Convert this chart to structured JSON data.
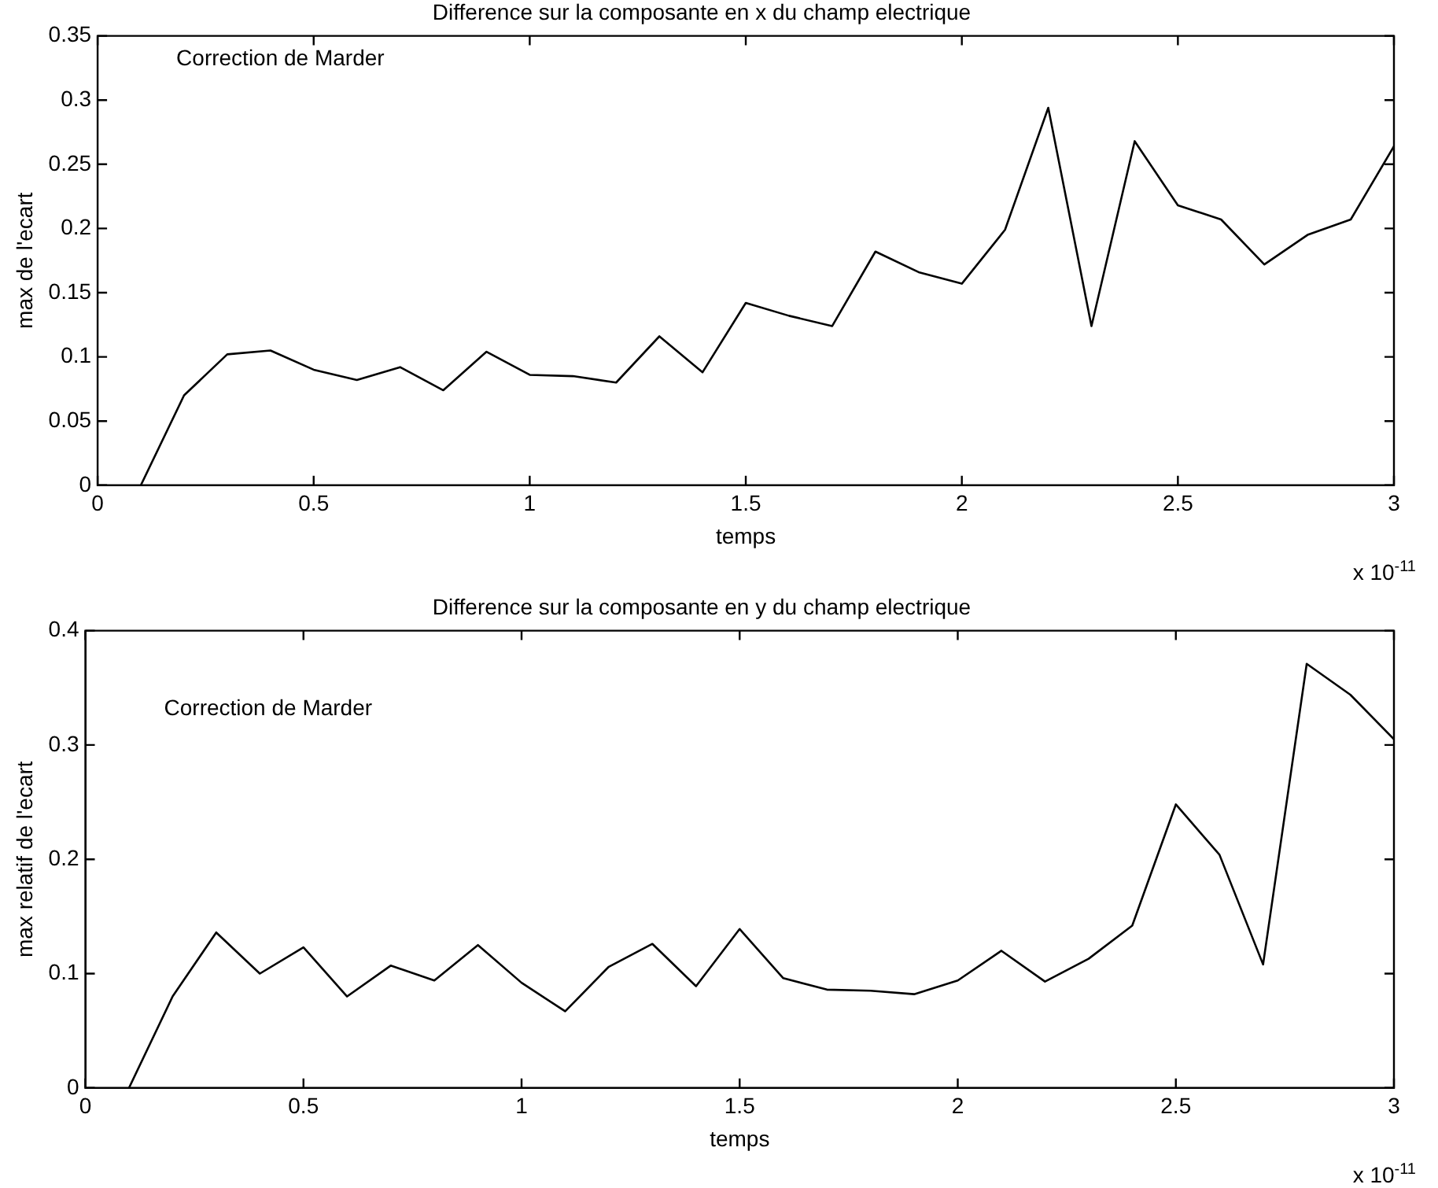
{
  "chart_data": [
    {
      "type": "line",
      "title": "Difference sur la composante en x du champ electrique",
      "xlabel": "temps",
      "ylabel": "max de l'ecart",
      "marker": "none",
      "line_style": "solid",
      "x": [
        0.1,
        0.2,
        0.3,
        0.4,
        0.5,
        0.6,
        0.7,
        0.8,
        0.9,
        1.0,
        1.1,
        1.2,
        1.3,
        1.4,
        1.5,
        1.6,
        1.7,
        1.8,
        1.9,
        2.0,
        2.1,
        2.2,
        2.3,
        2.4,
        2.5,
        2.6,
        2.7,
        2.8,
        2.9,
        3.0
      ],
      "series": [
        {
          "color": "#000000",
          "values": [
            0,
            0.07,
            0.102,
            0.105,
            0.09,
            0.082,
            0.092,
            0.074,
            0.104,
            0.086,
            0.085,
            0.08,
            0.116,
            0.088,
            0.142,
            0.132,
            0.124,
            0.182,
            0.166,
            0.157,
            0.199,
            0.294,
            0.124,
            0.268,
            0.218,
            0.207,
            0.172,
            0.195,
            0.207,
            0.264
          ]
        }
      ],
      "xlim": [
        0,
        3
      ],
      "xticks": [
        0,
        0.5,
        1,
        1.5,
        2,
        2.5,
        3
      ],
      "ylim": [
        0,
        0.35
      ],
      "yticks": [
        0,
        0.05,
        0.1,
        0.15,
        0.2,
        0.25,
        0.3,
        0.35
      ],
      "annotations": [
        "Correction de Marder",
        "x 10$^{-11}$"
      ]
    },
    {
      "type": "line",
      "title": "Difference sur la composante en y du champ electrique",
      "xlabel": "temps",
      "ylabel": "max relatif de l'ecart",
      "marker": "none",
      "line_style": "solid",
      "x": [
        0.1,
        0.2,
        0.3,
        0.4,
        0.5,
        0.6,
        0.7,
        0.8,
        0.9,
        1.0,
        1.1,
        1.2,
        1.3,
        1.4,
        1.5,
        1.6,
        1.7,
        1.8,
        1.9,
        2.0,
        2.1,
        2.2,
        2.3,
        2.4,
        2.5,
        2.6,
        2.7,
        2.8,
        2.9,
        3.0
      ],
      "series": [
        {
          "color": "#000000",
          "values": [
            0,
            0.08,
            0.136,
            0.1,
            0.123,
            0.08,
            0.107,
            0.094,
            0.125,
            0.092,
            0.067,
            0.106,
            0.126,
            0.089,
            0.139,
            0.096,
            0.086,
            0.085,
            0.082,
            0.094,
            0.12,
            0.093,
            0.113,
            0.142,
            0.248,
            0.204,
            0.108,
            0.371,
            0.344,
            0.305
          ]
        }
      ],
      "xlim": [
        0,
        3
      ],
      "xticks": [
        0,
        0.5,
        1,
        1.5,
        2,
        2.5,
        3
      ],
      "ylim": [
        0,
        0.4
      ],
      "yticks": [
        0,
        0.1,
        0.2,
        0.3,
        0.4
      ],
      "annotations": [
        "Correction de Marder",
        "x 10$^{-11}$"
      ]
    }
  ]
}
